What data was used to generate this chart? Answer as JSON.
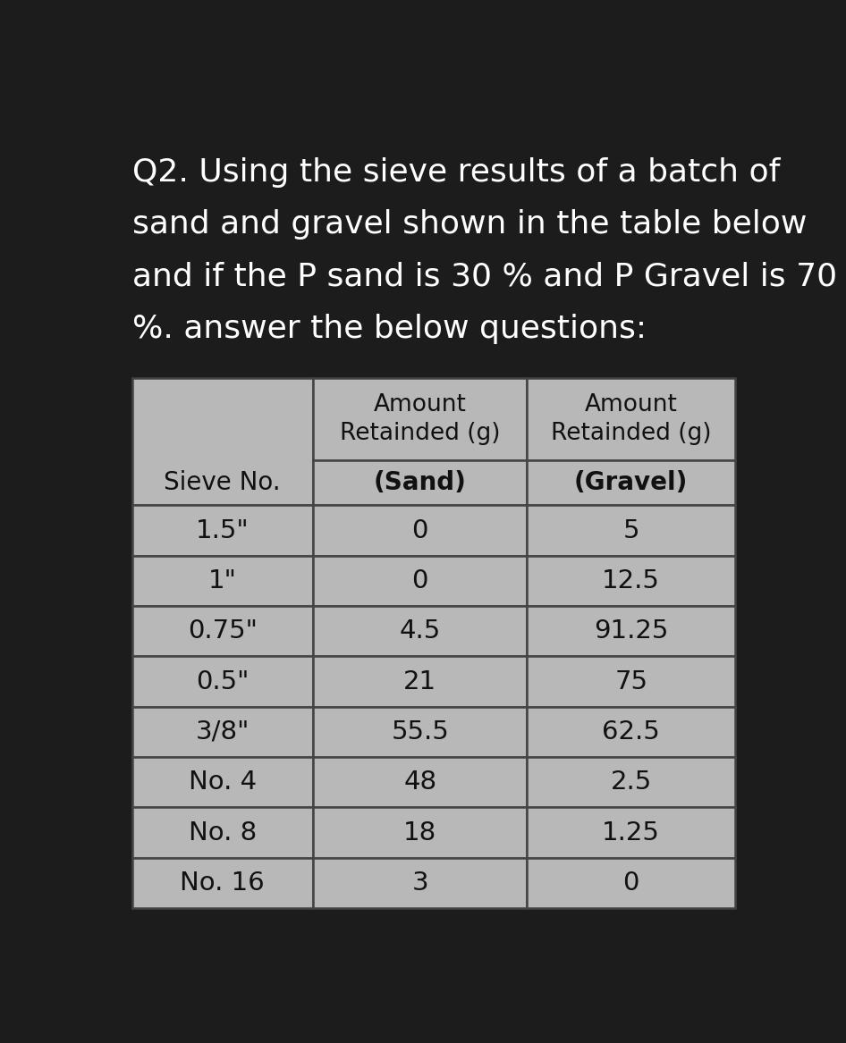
{
  "title_lines": [
    "Q2. Using the sieve results of a batch of",
    "sand and gravel shown in the table below",
    "and if the P sand is 30 % and P Gravel is 70",
    "%. answer the below questions:"
  ],
  "title_color": "#ffffff",
  "background_color": "#1c1c1c",
  "table_bg": "#b8b8b8",
  "table_border_color": "#444444",
  "sieve_nos": [
    "1.5\"",
    "1\"",
    "0.75\"",
    "0.5\"",
    "3/8\"",
    "No. 4",
    "No. 8",
    "No. 16"
  ],
  "sand_values": [
    "0",
    "0",
    "4.5",
    "21",
    "55.5",
    "48",
    "18",
    "3"
  ],
  "gravel_values": [
    "5",
    "12.5",
    "91.25",
    "75",
    "62.5",
    "2.5",
    "1.25",
    "0"
  ],
  "title_fontsize": 26,
  "cell_fontsize": 21,
  "header_fontsize": 20
}
